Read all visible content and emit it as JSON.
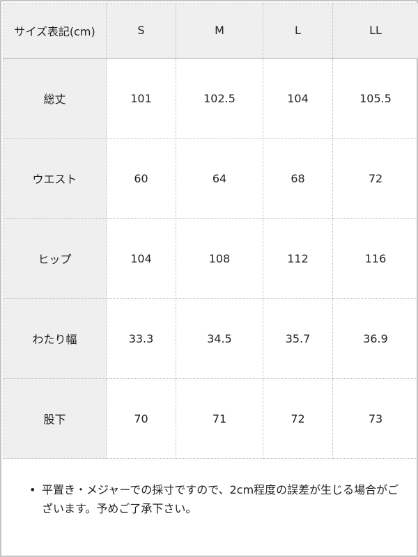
{
  "table": {
    "header": [
      "サイズ表記(cm)",
      "S",
      "M",
      "L",
      "LL"
    ],
    "rows": [
      [
        "総丈",
        "101",
        "102.5",
        "104",
        "105.5"
      ],
      [
        "ウエスト",
        "60",
        "64",
        "68",
        "72"
      ],
      [
        "ヒップ",
        "104",
        "108",
        "112",
        "116"
      ],
      [
        "わたり幅",
        "33.3",
        "34.5",
        "35.7",
        "36.9"
      ],
      [
        "股下",
        "70",
        "71",
        "72",
        "73"
      ]
    ]
  },
  "note": {
    "bullet": "•",
    "text": "平置き・メジャーでの採寸ですので、2cm程度の誤差が生じる場合がございます。予めご了承下さい。"
  }
}
